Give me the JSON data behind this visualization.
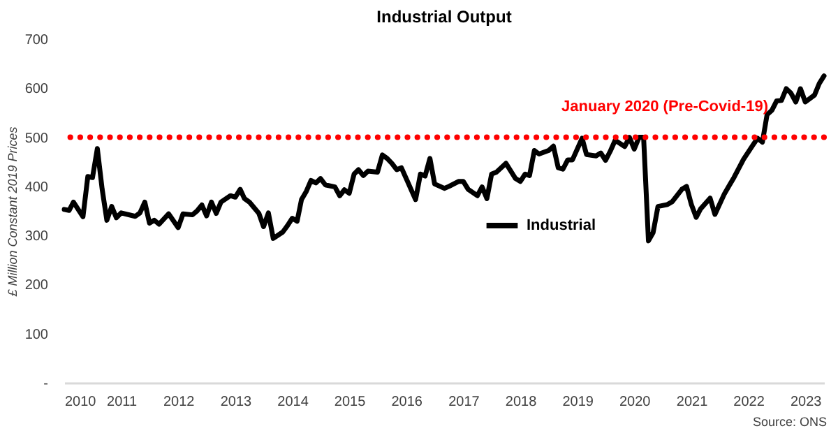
{
  "chart_data": {
    "type": "line",
    "title": "Industrial Output",
    "ylabel": "£ Million Constant 2019 Prices",
    "annotations": [
      "Source: ONS"
    ],
    "x": [
      "2010-01",
      "2010-02",
      "2010-03",
      "2010-05",
      "2010-06",
      "2010-07",
      "2010-08",
      "2010-09",
      "2010-10",
      "2010-11",
      "2010-12",
      "2011-01",
      "2011-04",
      "2011-05",
      "2011-06",
      "2011-07",
      "2011-08",
      "2011-09",
      "2011-11",
      "2012-01",
      "2012-02",
      "2012-04",
      "2012-05",
      "2012-06",
      "2012-07",
      "2012-08",
      "2012-09",
      "2012-10",
      "2012-12",
      "2013-01",
      "2013-02",
      "2013-03",
      "2013-04",
      "2013-06",
      "2013-07",
      "2013-08",
      "2013-09",
      "2013-11",
      "2013-12",
      "2014-01",
      "2014-02",
      "2014-03",
      "2014-04",
      "2014-05",
      "2014-06",
      "2014-07",
      "2014-08",
      "2014-10",
      "2014-11",
      "2014-12",
      "2015-01",
      "2015-02",
      "2015-03",
      "2015-04",
      "2015-05",
      "2015-07",
      "2015-08",
      "2015-09",
      "2015-10",
      "2015-11",
      "2015-12",
      "2016-01",
      "2016-03",
      "2016-04",
      "2016-05",
      "2016-06",
      "2016-07",
      "2016-09",
      "2016-10",
      "2016-12",
      "2017-01",
      "2017-02",
      "2017-04",
      "2017-05",
      "2017-06",
      "2017-07",
      "2017-08",
      "2017-10",
      "2017-12",
      "2018-01",
      "2018-02",
      "2018-03",
      "2018-04",
      "2018-05",
      "2018-07",
      "2018-08",
      "2018-09",
      "2018-10",
      "2018-11",
      "2018-12",
      "2019-02",
      "2019-03",
      "2019-05",
      "2019-06",
      "2019-07",
      "2019-08",
      "2019-09",
      "2019-11",
      "2019-12",
      "2020-01",
      "2020-02",
      "2020-03",
      "2020-04",
      "2020-05",
      "2020-06",
      "2020-08",
      "2020-09",
      "2020-11",
      "2020-12",
      "2021-01",
      "2021-02",
      "2021-03",
      "2021-05",
      "2021-06",
      "2021-08",
      "2021-09",
      "2021-10",
      "2021-12",
      "2022-02",
      "2022-03",
      "2022-04",
      "2022-05",
      "2022-06",
      "2022-07",
      "2022-08",
      "2022-09",
      "2022-10",
      "2022-11",
      "2022-12",
      "2023-01",
      "2023-03",
      "2023-04",
      "2023-05"
    ],
    "series": [
      {
        "name": "Industrial",
        "color": "#000000",
        "values": [
          353,
          351,
          368,
          338,
          420,
          418,
          477,
          394,
          331,
          359,
          336,
          346,
          339,
          346,
          368,
          325,
          331,
          323,
          344,
          316,
          344,
          342,
          350,
          362,
          340,
          368,
          345,
          368,
          381,
          378,
          394,
          375,
          368,
          345,
          318,
          346,
          294,
          307,
          320,
          335,
          329,
          373,
          390,
          412,
          407,
          416,
          403,
          399,
          381,
          393,
          386,
          425,
          434,
          422,
          431,
          429,
          464,
          457,
          447,
          434,
          438,
          416,
          373,
          425,
          421,
          457,
          405,
          396,
          400,
          410,
          410,
          394,
          381,
          399,
          375,
          425,
          429,
          447,
          416,
          410,
          425,
          422,
          473,
          466,
          473,
          482,
          438,
          435,
          454,
          454,
          498,
          465,
          462,
          468,
          453,
          472,
          494,
          481,
          500,
          476,
          500,
          500,
          289,
          306,
          359,
          363,
          369,
          394,
          400,
          363,
          337,
          354,
          376,
          343,
          385,
          402,
          418,
          455,
          485,
          498,
          490,
          546,
          555,
          574,
          575,
          599,
          590,
          572,
          599,
          572,
          586,
          610,
          625
        ]
      }
    ],
    "xlim": [
      "2010-01",
      "2023-05"
    ],
    "xticks": [
      "2010",
      "2011",
      "2012",
      "2013",
      "2014",
      "2015",
      "2016",
      "2017",
      "2018",
      "2019",
      "2020",
      "2021",
      "2022",
      "2023"
    ],
    "ylim": [
      0,
      700
    ],
    "yticks": [
      {
        "value": 0,
        "label": "-"
      },
      100,
      200,
      300,
      400,
      500,
      600,
      700
    ],
    "ref_lines": [
      {
        "axis": "y",
        "value": 500,
        "label": "January 2020 (Pre-Covid-19)",
        "color": "#ff0000",
        "line_style": "dotted"
      }
    ],
    "legend": "center",
    "marker": "none",
    "line_style": "solid",
    "grid": false
  }
}
